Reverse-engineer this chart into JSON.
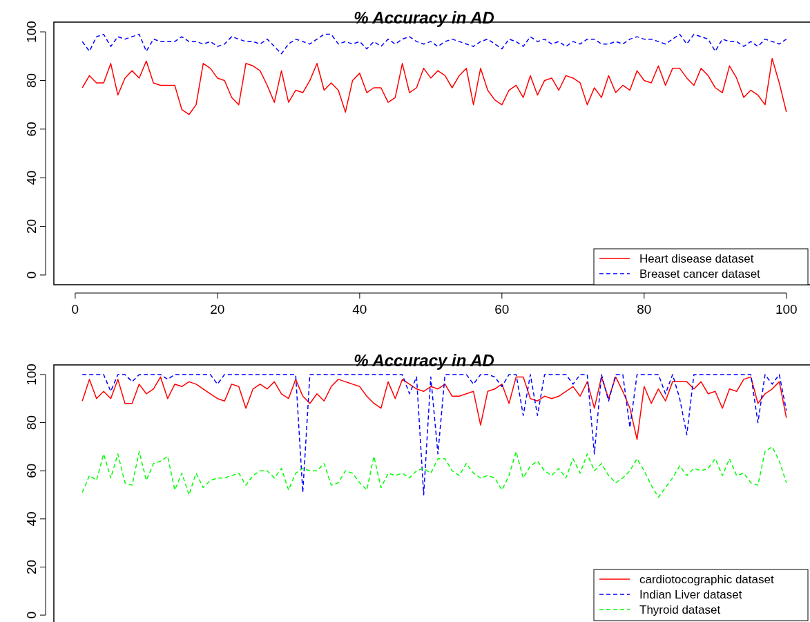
{
  "chart_data": [
    {
      "type": "line",
      "title": "% Accuracy in AD",
      "xlim": [
        -3,
        104
      ],
      "ylim": [
        -4,
        104
      ],
      "xticks": [
        0,
        20,
        40,
        60,
        80,
        100
      ],
      "yticks": [
        0,
        20,
        40,
        60,
        80,
        100
      ],
      "grid": false,
      "legend": "bottom right",
      "x": [
        1,
        2,
        3,
        4,
        5,
        6,
        7,
        8,
        9,
        10,
        11,
        12,
        13,
        14,
        15,
        16,
        17,
        18,
        19,
        20,
        21,
        22,
        23,
        24,
        25,
        26,
        27,
        28,
        29,
        30,
        31,
        32,
        33,
        34,
        35,
        36,
        37,
        38,
        39,
        40,
        41,
        42,
        43,
        44,
        45,
        46,
        47,
        48,
        49,
        50,
        51,
        52,
        53,
        54,
        55,
        56,
        57,
        58,
        59,
        60,
        61,
        62,
        63,
        64,
        65,
        66,
        67,
        68,
        69,
        70,
        71,
        72,
        73,
        74,
        75,
        76,
        77,
        78,
        79,
        80,
        81,
        82,
        83,
        84,
        85,
        86,
        87,
        88,
        89,
        90,
        91,
        92,
        93,
        94,
        95,
        96,
        97,
        98,
        99,
        100
      ],
      "series": [
        {
          "name": "Heart disease dataset",
          "color": "#ff0000",
          "line_style": "solid",
          "values": [
            77,
            82,
            79,
            79,
            87,
            74,
            81,
            84,
            81,
            88,
            79,
            78,
            78,
            78,
            68,
            66,
            70,
            87,
            85,
            81,
            80,
            73,
            70,
            87,
            86,
            84,
            78,
            71,
            84,
            71,
            76,
            75,
            80,
            87,
            76,
            79,
            76,
            67,
            80,
            83,
            75,
            77,
            77,
            71,
            73,
            87,
            75,
            77,
            85,
            81,
            84,
            82,
            77,
            82,
            85,
            70,
            85,
            76,
            72,
            70,
            76,
            78,
            73,
            82,
            74,
            80,
            81,
            76,
            82,
            81,
            79,
            70,
            77,
            73,
            82,
            75,
            78,
            76,
            84,
            80,
            79,
            86,
            78,
            85,
            85,
            81,
            78,
            85,
            82,
            77,
            75,
            86,
            81,
            73,
            76,
            74,
            70,
            89,
            79,
            67
          ]
        },
        {
          "name": "Breaset cancer dataset",
          "color": "#0000ff",
          "line_style": "dashed",
          "values": [
            96,
            92,
            98,
            99,
            94,
            98,
            97,
            98,
            99,
            92,
            97,
            96,
            96,
            96,
            98,
            96,
            96,
            95,
            96,
            94,
            95,
            98,
            97,
            96,
            96,
            95,
            97,
            94,
            91,
            95,
            97,
            96,
            95,
            97,
            99,
            99,
            95,
            96,
            95,
            96,
            93,
            96,
            94,
            97,
            95,
            97,
            98,
            96,
            95,
            96,
            94,
            96,
            97,
            96,
            95,
            94,
            96,
            97,
            95,
            93,
            97,
            96,
            94,
            98,
            96,
            97,
            95,
            96,
            94,
            96,
            95,
            97,
            97,
            95,
            95,
            96,
            95,
            97,
            98,
            97,
            97,
            96,
            95,
            97,
            99,
            95,
            99,
            98,
            97,
            92,
            97,
            96,
            96,
            94,
            96,
            94,
            97,
            96,
            95,
            97
          ]
        }
      ]
    },
    {
      "type": "line",
      "title": "% Accuracy in AD",
      "xlim": [
        -3,
        104
      ],
      "ylim": [
        -4,
        104
      ],
      "yticks": [
        0,
        20,
        40,
        60,
        80,
        100
      ],
      "tick_labels": "y",
      "grid": false,
      "legend": "bottom right",
      "x": [
        1,
        2,
        3,
        4,
        5,
        6,
        7,
        8,
        9,
        10,
        11,
        12,
        13,
        14,
        15,
        16,
        17,
        18,
        19,
        20,
        21,
        22,
        23,
        24,
        25,
        26,
        27,
        28,
        29,
        30,
        31,
        32,
        33,
        34,
        35,
        36,
        37,
        38,
        39,
        40,
        41,
        42,
        43,
        44,
        45,
        46,
        47,
        48,
        49,
        50,
        51,
        52,
        53,
        54,
        55,
        56,
        57,
        58,
        59,
        60,
        61,
        62,
        63,
        64,
        65,
        66,
        67,
        68,
        69,
        70,
        71,
        72,
        73,
        74,
        75,
        76,
        77,
        78,
        79,
        80,
        81,
        82,
        83,
        84,
        85,
        86,
        87,
        88,
        89,
        90,
        91,
        92,
        93,
        94,
        95,
        96,
        97,
        98,
        99,
        100
      ],
      "series": [
        {
          "name": "cardiotocographic dataset",
          "color": "#ff0000",
          "line_style": "solid",
          "values": [
            89,
            98,
            90,
            93,
            90,
            98,
            88,
            88,
            96,
            92,
            94,
            99,
            90,
            96,
            95,
            97,
            96,
            94,
            92,
            90,
            89,
            96,
            95,
            86,
            94,
            96,
            94,
            97,
            92,
            90,
            98,
            91,
            88,
            92,
            89,
            95,
            98,
            97,
            96,
            95,
            91,
            88,
            86,
            97,
            90,
            98,
            96,
            94,
            93,
            95,
            94,
            96,
            91,
            91,
            92,
            93,
            79,
            93,
            94,
            96,
            88,
            99,
            99,
            90,
            89,
            91,
            90,
            91,
            93,
            95,
            91,
            97,
            86,
            99,
            90,
            99,
            93,
            86,
            73,
            95,
            88,
            94,
            89,
            97,
            97,
            97,
            94,
            97,
            92,
            93,
            86,
            94,
            93,
            98,
            99,
            88,
            92,
            94,
            97,
            82
          ]
        },
        {
          "name": "Indian Liver dataset",
          "color": "#0000ff",
          "line_style": "dashed",
          "values": [
            100,
            100,
            100,
            100,
            93,
            100,
            100,
            97,
            100,
            100,
            100,
            100,
            98,
            100,
            100,
            100,
            100,
            100,
            100,
            96,
            100,
            100,
            100,
            100,
            100,
            100,
            100,
            100,
            100,
            100,
            100,
            51,
            100,
            100,
            100,
            100,
            100,
            100,
            100,
            100,
            100,
            100,
            100,
            100,
            100,
            100,
            92,
            99,
            50,
            99,
            67,
            100,
            100,
            100,
            100,
            96,
            100,
            100,
            99,
            95,
            100,
            100,
            83,
            100,
            83,
            100,
            100,
            100,
            100,
            96,
            100,
            100,
            67,
            100,
            89,
            100,
            100,
            78,
            100,
            100,
            100,
            100,
            92,
            100,
            90,
            75,
            100,
            100,
            100,
            100,
            100,
            100,
            100,
            100,
            100,
            80,
            100,
            96,
            100,
            85
          ]
        },
        {
          "name": "Thyroid dataset",
          "color": "#00ff00",
          "line_style": "dashed",
          "values": [
            51,
            58,
            56,
            67,
            57,
            67,
            55,
            54,
            68,
            56,
            63,
            64,
            66,
            52,
            59,
            50,
            59,
            53,
            56,
            57,
            57,
            58,
            59,
            54,
            58,
            60,
            60,
            57,
            61,
            52,
            59,
            61,
            60,
            60,
            63,
            54,
            55,
            60,
            59,
            55,
            52,
            66,
            53,
            59,
            58,
            59,
            57,
            60,
            61,
            59,
            65,
            65,
            60,
            58,
            63,
            59,
            57,
            58,
            57,
            52,
            58,
            68,
            57,
            62,
            64,
            60,
            58,
            61,
            57,
            65,
            59,
            67,
            60,
            63,
            58,
            55,
            57,
            60,
            65,
            60,
            54,
            49,
            53,
            57,
            62,
            58,
            61,
            60,
            61,
            65,
            58,
            65,
            58,
            59,
            55,
            54,
            68,
            70,
            64,
            55
          ]
        }
      ]
    }
  ]
}
